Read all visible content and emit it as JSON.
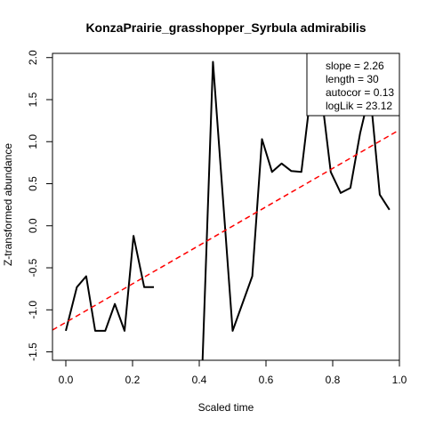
{
  "chart_data": {
    "type": "line",
    "title": "KonzaPrairie_grasshopper_Syrbula admirabilis",
    "xlabel": "Scaled time",
    "ylabel": "Z-transformed abundance",
    "xlim": [
      -0.04,
      1.0
    ],
    "ylim": [
      -1.6,
      2.05
    ],
    "x_ticks": [
      0.0,
      0.2,
      0.4,
      0.6,
      0.8,
      1.0
    ],
    "x_tick_labels": [
      "0.0",
      "0.2",
      "0.4",
      "0.6",
      "0.8",
      "1.0"
    ],
    "y_ticks": [
      -1.5,
      -1.0,
      -0.5,
      0.0,
      0.5,
      1.0,
      1.5,
      2.0
    ],
    "y_tick_labels": [
      "-1.5",
      "-1.0",
      "-0.5",
      "0.0",
      "0.5",
      "1.0",
      "1.5",
      "2.0"
    ],
    "grid": false,
    "series": [
      {
        "color": "#000000",
        "style": "solid",
        "segments": [
          [
            [
              0.0,
              -1.25
            ],
            [
              0.033,
              -0.73
            ],
            [
              0.061,
              -0.6
            ],
            [
              0.088,
              -1.25
            ],
            [
              0.118,
              -1.25
            ],
            [
              0.147,
              -0.93
            ],
            [
              0.176,
              -1.25
            ],
            [
              0.203,
              -0.12
            ],
            [
              0.235,
              -0.73
            ],
            [
              0.264,
              -0.73
            ]
          ],
          [
            [
              0.41,
              -1.6
            ],
            [
              0.441,
              1.95
            ],
            [
              0.5,
              -1.25
            ],
            [
              0.559,
              -0.6
            ],
            [
              0.588,
              1.03
            ],
            [
              0.618,
              0.64
            ],
            [
              0.647,
              0.74
            ],
            [
              0.676,
              0.65
            ],
            [
              0.706,
              0.64
            ],
            [
              0.735,
              1.6
            ],
            [
              0.765,
              1.6
            ],
            [
              0.794,
              0.64
            ],
            [
              0.824,
              0.39
            ],
            [
              0.853,
              0.45
            ],
            [
              0.882,
              1.1
            ],
            [
              0.912,
              1.6
            ],
            [
              0.941,
              0.37
            ],
            [
              0.97,
              0.19
            ]
          ]
        ]
      },
      {
        "color": "#ff0000",
        "style": "dashed",
        "segments": [
          [
            [
              -0.04,
              -1.24
            ],
            [
              1.0,
              1.14
            ]
          ]
        ]
      }
    ],
    "legend": {
      "position": "top-right",
      "entries": [
        "slope = 2.26",
        "length = 30",
        "autocor = 0.13",
        "logLik = 23.12"
      ]
    }
  }
}
